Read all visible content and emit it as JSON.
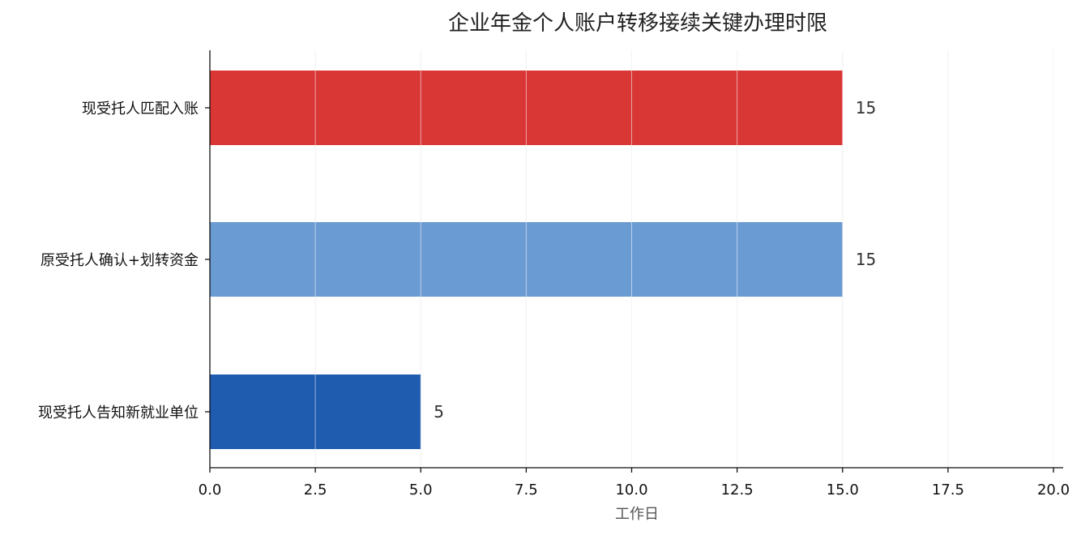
{
  "chart_data": {
    "type": "bar",
    "orientation": "horizontal",
    "title": "企业年金个人账户转移接续关键办理时限",
    "xlabel": "工作日",
    "ylabel": "",
    "xlim": [
      0,
      20
    ],
    "xticks": [
      "0.0",
      "2.5",
      "5.0",
      "7.5",
      "10.0",
      "12.5",
      "15.0",
      "17.5",
      "20.0"
    ],
    "categories": [
      "现受托人匹配入账",
      "原受托人确认+划转资金",
      "现受托人告知新就业单位"
    ],
    "values": [
      15,
      15,
      5
    ],
    "data_labels": [
      "15",
      "15",
      "5"
    ],
    "colors": [
      "#d93636",
      "#6b9bd3",
      "#1f5bae"
    ],
    "grid": "vertical",
    "legend": "none"
  }
}
